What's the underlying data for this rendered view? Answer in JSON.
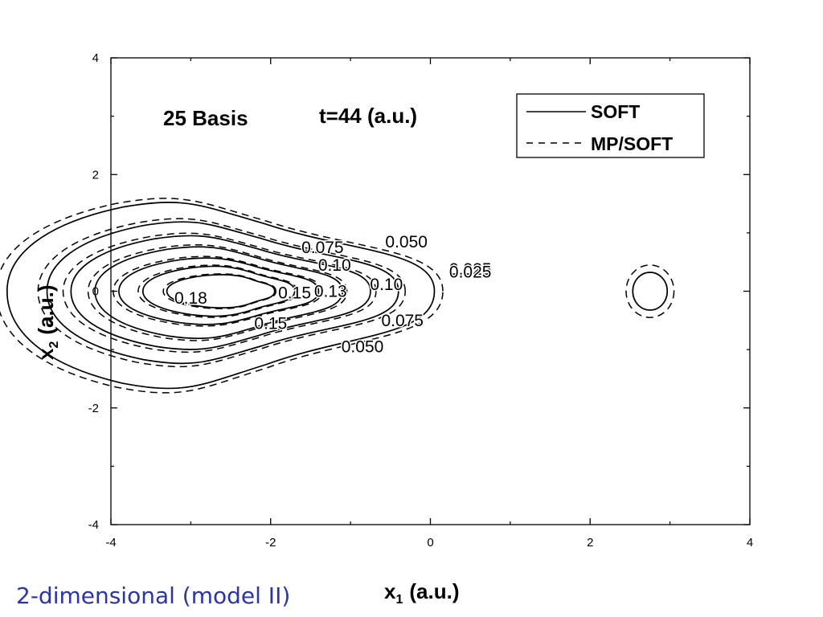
{
  "caption": "2-dimensional (model II)",
  "chart_data": {
    "type": "contour",
    "title": "",
    "annotations": [
      "25 Basis",
      "t=44 (a.u.)"
    ],
    "xlabel_main": "x",
    "xlabel_sub": "1",
    "xlabel_unit": "(a.u.)",
    "ylabel_main": "x",
    "ylabel_sub": "2",
    "ylabel_unit": "(a.u.)",
    "xlim": [
      -4,
      4
    ],
    "ylim": [
      -4,
      4
    ],
    "xticks": [
      -4,
      -2,
      0,
      2,
      4
    ],
    "yticks": [
      -4,
      -2,
      0,
      2,
      4
    ],
    "xtick_labels": [
      "-4",
      "-2",
      "0",
      "2",
      "4"
    ],
    "ytick_labels": [
      "-4",
      "-2",
      "0",
      "2",
      "4"
    ],
    "grid": false,
    "legend_position": "top-right",
    "series": [
      {
        "name": "SOFT",
        "style": "solid"
      },
      {
        "name": "MP/SOFT",
        "style": "dashed"
      }
    ],
    "contour_levels": [
      "0.025",
      "0.050",
      "0.075",
      "0.10",
      "0.13",
      "0.15",
      "0.18"
    ],
    "main_lobe": {
      "center": [
        -2.3,
        0.0
      ],
      "levels": [
        {
          "level": 0.025,
          "left": 3.0,
          "right": 2.35,
          "top": 1.6,
          "bottom": 1.75
        },
        {
          "level": 0.05,
          "left": 2.5,
          "right": 1.9,
          "top": 1.25,
          "bottom": 1.3
        },
        {
          "level": 0.075,
          "left": 2.2,
          "right": 1.55,
          "top": 1.0,
          "bottom": 1.05
        },
        {
          "level": 0.1,
          "left": 1.9,
          "right": 1.2,
          "top": 0.8,
          "bottom": 0.85
        },
        {
          "level": 0.13,
          "left": 1.6,
          "right": 0.9,
          "top": 0.6,
          "bottom": 0.6
        },
        {
          "level": 0.15,
          "left": 1.3,
          "right": 0.6,
          "top": 0.45,
          "bottom": 0.45
        },
        {
          "level": 0.18,
          "left": 1.0,
          "right": 0.35,
          "top": 0.3,
          "bottom": 0.3
        }
      ]
    },
    "secondary_lobe": {
      "center": [
        2.75,
        0.0
      ],
      "rx": 0.3,
      "ry": 0.45
    },
    "contour_labels": [
      {
        "text": "0.050",
        "x": -0.3,
        "y": 0.85
      },
      {
        "text": "0.075",
        "x": -1.35,
        "y": 0.75
      },
      {
        "text": "0.10",
        "x": -1.2,
        "y": 0.45
      },
      {
        "text": "0.025",
        "x": 0.5,
        "y": 0.38
      },
      {
        "text": "0.025",
        "x": 0.5,
        "y": 0.33
      },
      {
        "text": "0.10",
        "x": -0.55,
        "y": 0.12
      },
      {
        "text": "0.13",
        "x": -1.25,
        "y": 0.0
      },
      {
        "text": "0.15",
        "x": -1.7,
        "y": -0.03
      },
      {
        "text": "0.18",
        "x": -3.0,
        "y": -0.12
      },
      {
        "text": "0.075",
        "x": -0.35,
        "y": -0.5
      },
      {
        "text": "0.15",
        "x": -2.0,
        "y": -0.55
      },
      {
        "text": "0.050",
        "x": -0.85,
        "y": -0.95
      }
    ]
  }
}
